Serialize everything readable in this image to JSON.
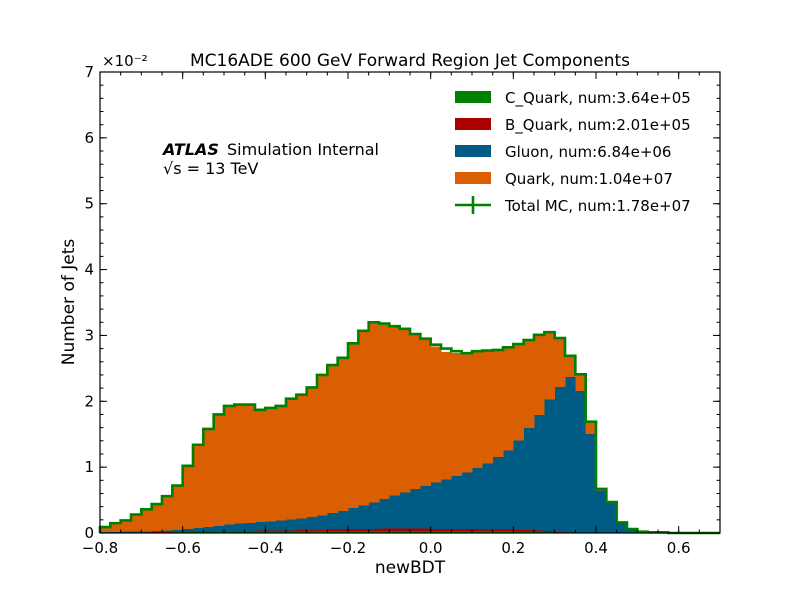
{
  "chart_data": {
    "type": "bar",
    "subtype": "stacked-step-histogram",
    "title": "MC16ADE 600 GeV Forward Region Jet Components",
    "xlabel": "newBDT",
    "ylabel": "Number of Jets",
    "y_multiplier_label": "×10⁻²",
    "xlim": [
      -0.8,
      0.7
    ],
    "ylim": [
      0,
      7
    ],
    "xticks": [
      "−0.8",
      "−0.6",
      "−0.4",
      "−0.2",
      "0.0",
      "0.2",
      "0.4",
      "0.6"
    ],
    "xtick_values": [
      -0.8,
      -0.6,
      -0.4,
      -0.2,
      0.0,
      0.2,
      0.4,
      0.6
    ],
    "yticks": [
      "0",
      "1",
      "2",
      "3",
      "4",
      "5",
      "6",
      "7"
    ],
    "ytick_values": [
      0,
      1,
      2,
      3,
      4,
      5,
      6,
      7
    ],
    "legend_position": "top-right",
    "annotation": {
      "experiment": "ATLAS",
      "status": "Simulation Internal",
      "energy": "√s = 13 TeV"
    },
    "bin_edges": [
      -0.8,
      -0.775,
      -0.75,
      -0.725,
      -0.7,
      -0.675,
      -0.65,
      -0.625,
      -0.6,
      -0.575,
      -0.55,
      -0.525,
      -0.5,
      -0.475,
      -0.45,
      -0.425,
      -0.4,
      -0.375,
      -0.35,
      -0.325,
      -0.3,
      -0.275,
      -0.25,
      -0.225,
      -0.2,
      -0.175,
      -0.15,
      -0.125,
      -0.1,
      -0.075,
      -0.05,
      -0.025,
      0.0,
      0.025,
      0.05,
      0.075,
      0.1,
      0.125,
      0.15,
      0.175,
      0.2,
      0.225,
      0.25,
      0.275,
      0.3,
      0.325,
      0.35,
      0.375,
      0.4,
      0.425,
      0.45,
      0.475,
      0.5,
      0.525,
      0.55,
      0.575,
      0.6,
      0.625,
      0.65,
      0.675,
      0.7
    ],
    "series": [
      {
        "name": "C_Quark, num:3.64e+05",
        "color": "#008000",
        "values": [
          0.003,
          0.004,
          0.005,
          0.006,
          0.007,
          0.009,
          0.01,
          0.012,
          0.014,
          0.016,
          0.018,
          0.02,
          0.021,
          0.022,
          0.022,
          0.023,
          0.023,
          0.024,
          0.025,
          0.026,
          0.027,
          0.028,
          0.029,
          0.03,
          0.031,
          0.032,
          0.033,
          0.033,
          0.034,
          0.034,
          0.034,
          0.034,
          0.034,
          0.034,
          0.034,
          0.033,
          0.032,
          0.031,
          0.03,
          0.028,
          0.026,
          0.024,
          0.02,
          0.015,
          0.01,
          0.006,
          0.003,
          0.002,
          0.001,
          0.001,
          0.0,
          0.0,
          0.0,
          0.0,
          0.0,
          0.0,
          0.0,
          0.0,
          0.0,
          0.0
        ]
      },
      {
        "name": "B_Quark, num:2.01e+05",
        "color": "#aa0000",
        "values": [
          0.001,
          0.001,
          0.002,
          0.002,
          0.003,
          0.003,
          0.004,
          0.005,
          0.006,
          0.007,
          0.008,
          0.009,
          0.01,
          0.011,
          0.012,
          0.013,
          0.014,
          0.015,
          0.016,
          0.017,
          0.018,
          0.02,
          0.022,
          0.024,
          0.026,
          0.028,
          0.03,
          0.032,
          0.034,
          0.034,
          0.033,
          0.031,
          0.03,
          0.029,
          0.028,
          0.027,
          0.026,
          0.025,
          0.024,
          0.022,
          0.02,
          0.018,
          0.015,
          0.012,
          0.008,
          0.005,
          0.003,
          0.002,
          0.001,
          0.0,
          0.0,
          0.0,
          0.0,
          0.0,
          0.0,
          0.0,
          0.0,
          0.0,
          0.0,
          0.0
        ]
      },
      {
        "name": "Gluon, num:6.84e+06",
        "color": "#005b84",
        "values": [
          0.01,
          0.01,
          0.012,
          0.014,
          0.016,
          0.02,
          0.025,
          0.032,
          0.04,
          0.052,
          0.065,
          0.08,
          0.095,
          0.11,
          0.12,
          0.13,
          0.14,
          0.15,
          0.165,
          0.18,
          0.2,
          0.22,
          0.25,
          0.28,
          0.32,
          0.36,
          0.4,
          0.45,
          0.5,
          0.55,
          0.6,
          0.65,
          0.7,
          0.75,
          0.8,
          0.86,
          0.93,
          1.0,
          1.1,
          1.2,
          1.36,
          1.55,
          1.76,
          2.0,
          2.2,
          2.36,
          2.15,
          1.5,
          0.64,
          0.45,
          0.15,
          0.06,
          0.02,
          0.01,
          0.01,
          0.0,
          0.0,
          0.0,
          0.0,
          0.0
        ]
      },
      {
        "name": "Quark, num:1.04e+07",
        "color": "#d95f02",
        "values": [
          0.076,
          0.135,
          0.171,
          0.258,
          0.334,
          0.41,
          0.521,
          0.671,
          0.96,
          1.265,
          1.489,
          1.691,
          1.804,
          1.807,
          1.796,
          1.704,
          1.723,
          1.743,
          1.834,
          1.875,
          1.965,
          2.132,
          2.249,
          2.326,
          2.504,
          2.652,
          2.737,
          2.668,
          2.576,
          2.486,
          2.357,
          2.236,
          2.066,
          1.937,
          1.868,
          1.81,
          1.772,
          1.714,
          1.626,
          1.572,
          1.464,
          1.337,
          1.215,
          1.023,
          0.74,
          0.32,
          0.25,
          0.17,
          0.03,
          0.02,
          0.01,
          0.0,
          0.0,
          0.0,
          0.0,
          0.0,
          0.0,
          0.0,
          0.0,
          0.0
        ]
      },
      {
        "name": "Total MC, num:1.78e+07",
        "color": "#008000",
        "style": "step-outline",
        "values": [
          0.09,
          0.15,
          0.19,
          0.28,
          0.36,
          0.44,
          0.56,
          0.72,
          1.02,
          1.34,
          1.58,
          1.8,
          1.93,
          1.95,
          1.95,
          1.87,
          1.9,
          1.93,
          2.04,
          2.1,
          2.21,
          2.4,
          2.55,
          2.66,
          2.88,
          3.07,
          3.2,
          3.18,
          3.14,
          3.1,
          3.02,
          2.95,
          2.86,
          2.8,
          2.76,
          2.73,
          2.76,
          2.77,
          2.78,
          2.82,
          2.87,
          2.93,
          3.01,
          3.05,
          2.96,
          2.69,
          2.41,
          1.69,
          0.67,
          0.47,
          0.16,
          0.06,
          0.02,
          0.01,
          0.01,
          0.0,
          0.0,
          0.0,
          0.0,
          0.0
        ]
      }
    ]
  },
  "colors": {
    "c_quark": "#008000",
    "b_quark": "#aa0000",
    "gluon": "#005b84",
    "quark": "#d95f02",
    "total": "#008000"
  }
}
